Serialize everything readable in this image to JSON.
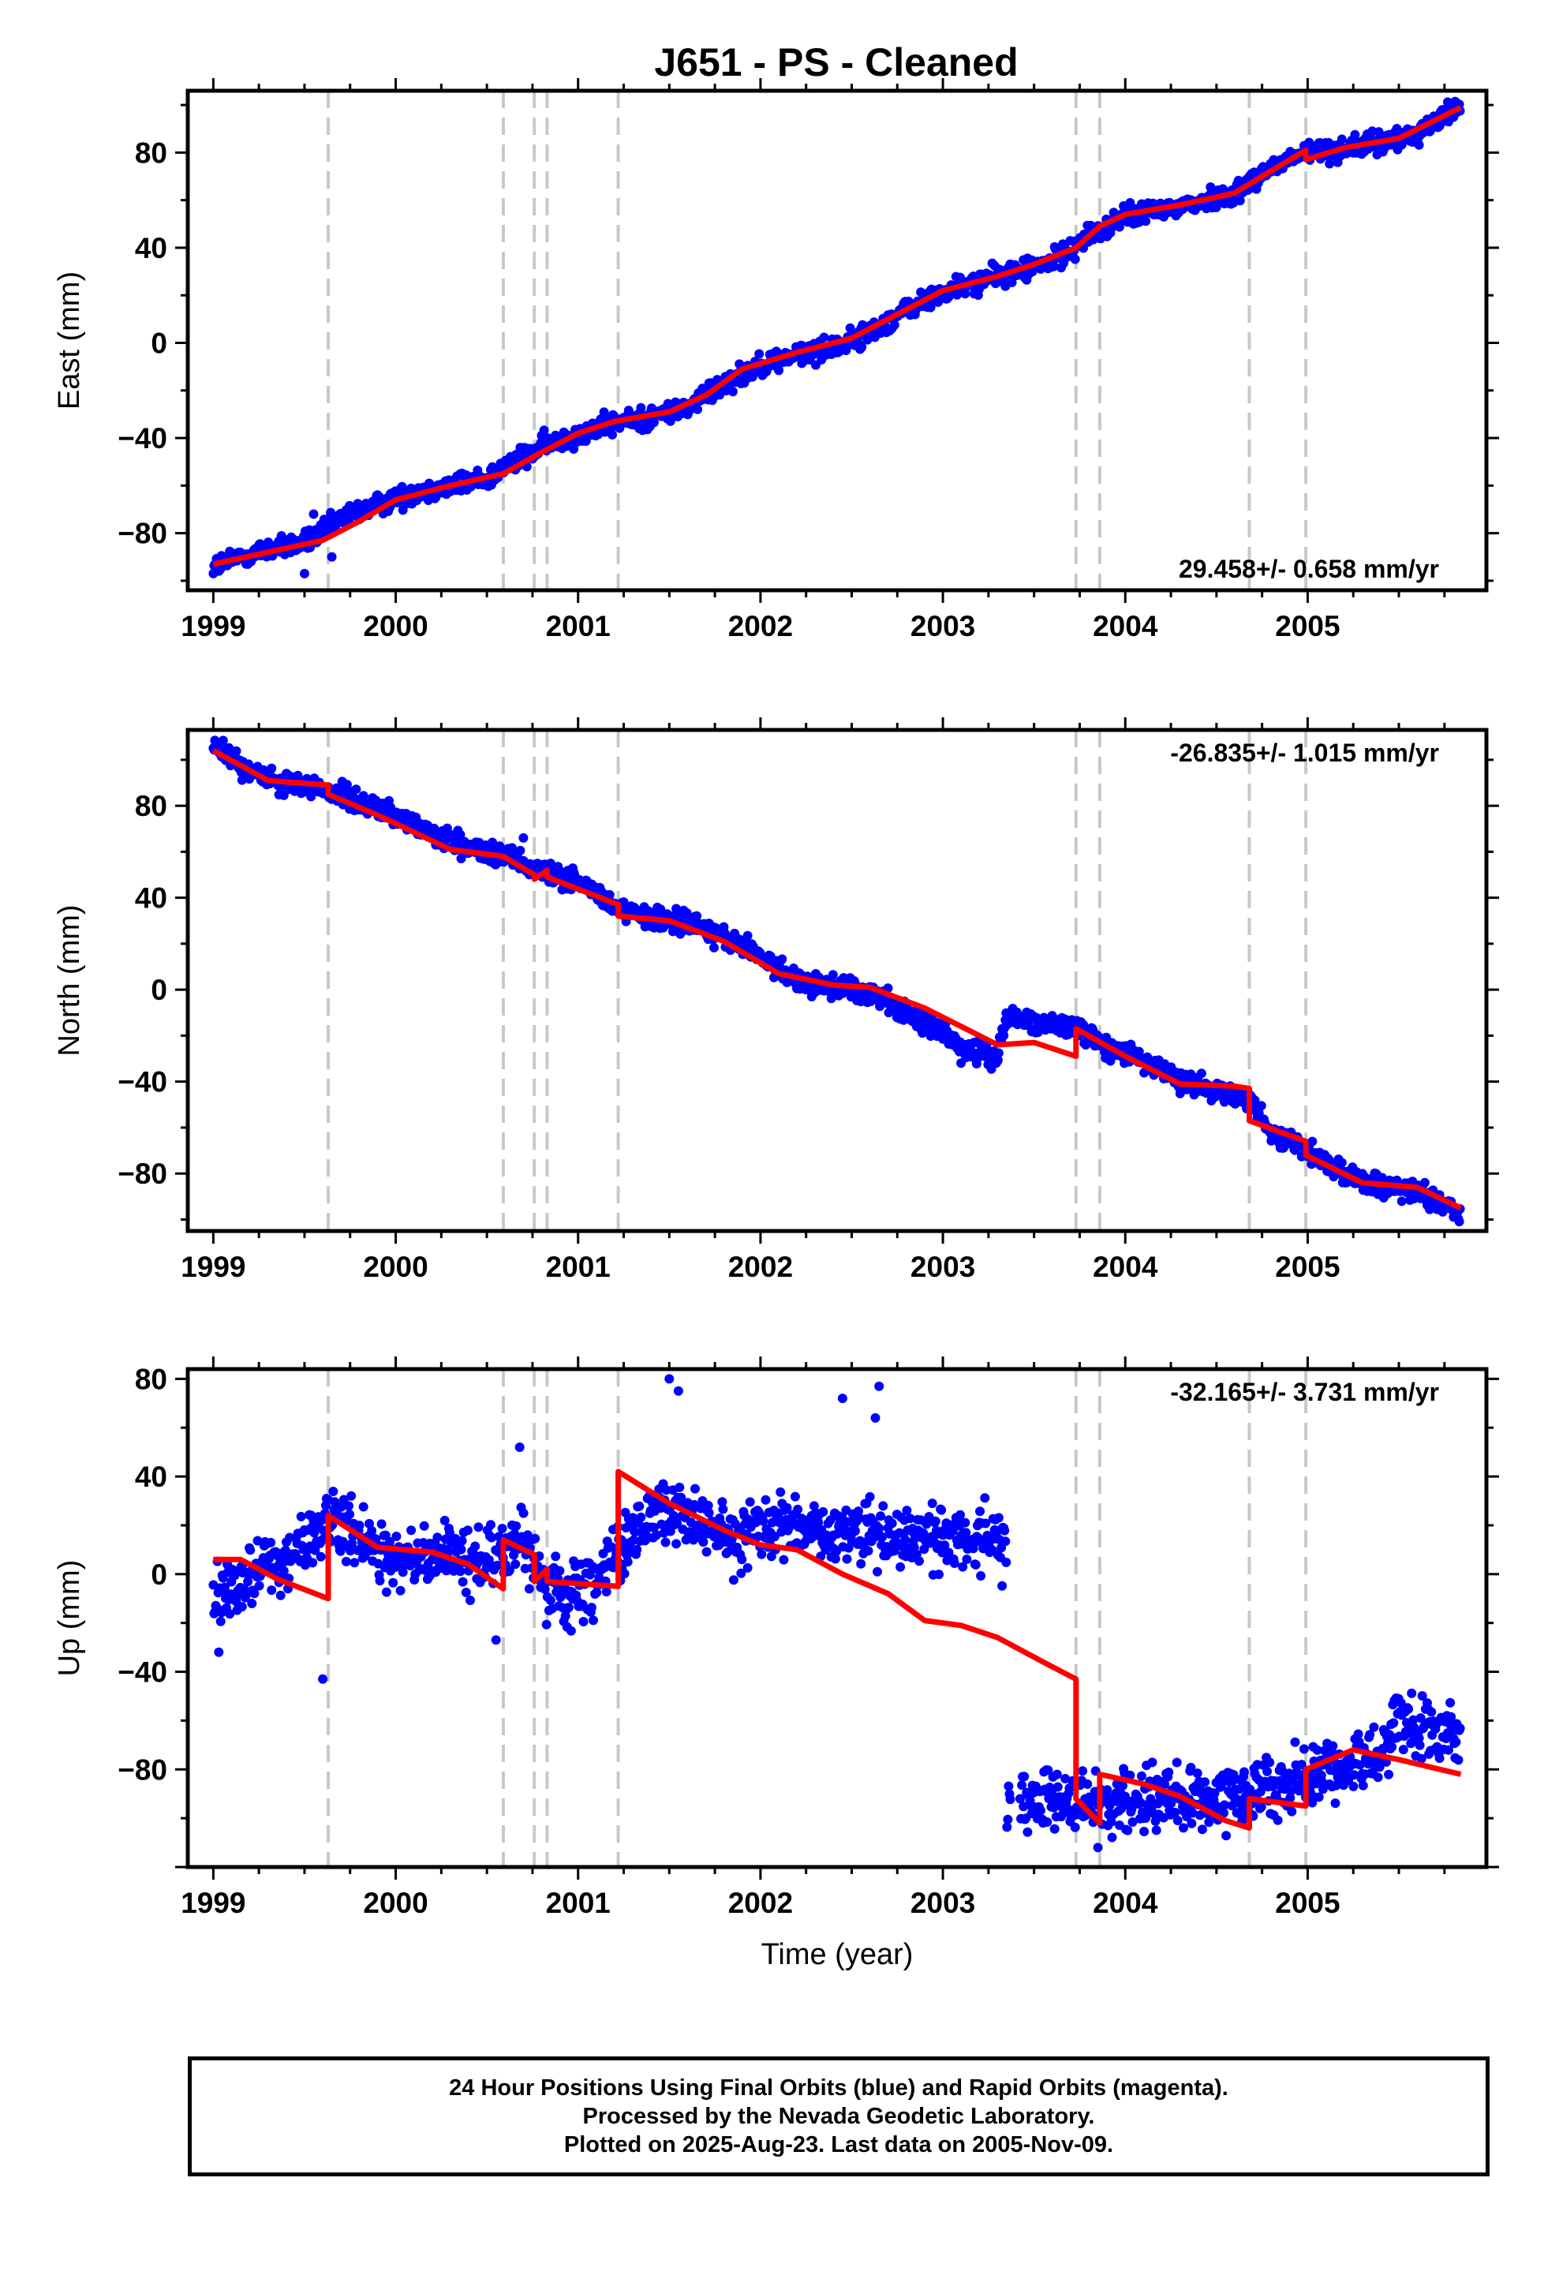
{
  "title": "J651  - PS - Cleaned",
  "colors": {
    "data": "#0000ff",
    "model": "#ff0000",
    "breaks": "#c8c8c8",
    "frame": "#000000"
  },
  "footer": {
    "line1": "24 Hour Positions Using Final Orbits (blue) and Rapid Orbits (magenta).",
    "line2": "Processed by the Nevada Geodetic Laboratory.",
    "line3": "Plotted on 2025-Aug-23. Last data on 2005-Nov-09."
  },
  "chart_data": [
    {
      "type": "scatter",
      "name": "east-panel",
      "ylabel": "East (mm)",
      "xlabel": "",
      "xlim": [
        1998.86,
        2005.98
      ],
      "ylim": [
        -104,
        106
      ],
      "yticks": [
        -80,
        -40,
        0,
        40,
        80
      ],
      "ytick_labels": [
        "−80",
        "−40",
        "0",
        "40",
        "80"
      ],
      "xticks": [
        1999,
        2000,
        2001,
        2002,
        2003,
        2004,
        2005
      ],
      "xtick_labels": [
        "1999",
        "2000",
        "2001",
        "2002",
        "2003",
        "2004",
        "2005"
      ],
      "rate_label": "29.458+/- 0.658 mm/yr",
      "rate_position": "bottom-right",
      "breaks": [
        1999.63,
        2000.59,
        2000.76,
        2000.83,
        2001.22,
        2003.73,
        2003.86,
        2004.68,
        2004.99
      ],
      "model": {
        "x": [
          1999.0,
          1999.3,
          1999.6,
          1999.8,
          2000.0,
          2000.3,
          2000.59,
          2000.8,
          2001.0,
          2001.2,
          2001.5,
          2001.7,
          2001.9,
          2002.2,
          2002.5,
          2002.7,
          2003.0,
          2003.3,
          2003.5,
          2003.73,
          2003.86,
          2004.0,
          2004.3,
          2004.6,
          2004.75,
          2004.99,
          2004.99,
          2005.2,
          2005.5,
          2005.84
        ],
        "y": [
          -93,
          -88,
          -83,
          -75,
          -66,
          -60,
          -55,
          -46,
          -38,
          -33,
          -29,
          -22,
          -11,
          -4,
          2,
          10,
          22,
          28,
          33,
          40,
          49,
          54,
          58,
          63,
          70,
          81,
          77,
          82,
          86,
          99
        ]
      },
      "data": {
        "x": [
          1999.0,
          1999.1,
          1999.3,
          1999.5,
          1999.6,
          1999.7,
          1999.9,
          2000.1,
          2000.3,
          2000.5,
          2000.6,
          2000.8,
          2001.0,
          2001.2,
          2001.4,
          2001.6,
          2001.8,
          2002.0,
          2002.2,
          2002.4,
          2002.6,
          2002.8,
          2003.0,
          2003.2,
          2003.4,
          2003.6,
          2003.8,
          2004.0,
          2004.2,
          2004.4,
          2004.6,
          2004.8,
          2005.0,
          2005.2,
          2005.4,
          2005.6,
          2005.84
        ],
        "y": [
          -94,
          -91,
          -87,
          -84,
          -80,
          -74,
          -68,
          -63,
          -60,
          -57,
          -52,
          -44,
          -38,
          -34,
          -31,
          -27,
          -17,
          -9,
          -5,
          -2,
          4,
          14,
          21,
          26,
          30,
          34,
          45,
          53,
          56,
          59,
          63,
          74,
          80,
          82,
          84,
          88,
          100
        ],
        "noise": 3.2,
        "outliers": [
          [
            1999.5,
            -97
          ],
          [
            1999.55,
            -72
          ],
          [
            1999.65,
            -90
          ]
        ]
      }
    },
    {
      "type": "scatter",
      "name": "north-panel",
      "ylabel": "North (mm)",
      "xlabel": "",
      "xlim": [
        1998.86,
        2005.98
      ],
      "ylim": [
        -105,
        113
      ],
      "yticks": [
        -80,
        -40,
        0,
        40,
        80
      ],
      "ytick_labels": [
        "−80",
        "−40",
        "0",
        "40",
        "80"
      ],
      "xticks": [
        1999,
        2000,
        2001,
        2002,
        2003,
        2004,
        2005
      ],
      "xtick_labels": [
        "1999",
        "2000",
        "2001",
        "2002",
        "2003",
        "2004",
        "2005"
      ],
      "rate_label": "-26.835+/- 1.015 mm/yr",
      "rate_position": "top-right",
      "breaks": [
        1999.63,
        2000.59,
        2000.76,
        2000.83,
        2001.22,
        2003.73,
        2003.86,
        2004.68,
        2004.99
      ],
      "model": {
        "x": [
          1999.0,
          1999.3,
          1999.63,
          1999.63,
          1999.9,
          2000.3,
          2000.59,
          2000.76,
          2000.76,
          2000.83,
          2000.83,
          2001.22,
          2001.22,
          2001.5,
          2001.8,
          2002.1,
          2002.4,
          2002.6,
          2002.9,
          2003.1,
          2003.3,
          2003.5,
          2003.73,
          2003.73,
          2004.0,
          2004.3,
          2004.6,
          2004.68,
          2004.68,
          2004.99,
          2004.99,
          2005.3,
          2005.6,
          2005.84
        ],
        "y": [
          104,
          91,
          89,
          85,
          76,
          61,
          58,
          50,
          48,
          52,
          49,
          37,
          32,
          30,
          21,
          7,
          2,
          1,
          -8,
          -16,
          -24,
          -23,
          -29,
          -17,
          -29,
          -41,
          -42,
          -43,
          -57,
          -66,
          -72,
          -84,
          -86,
          -95
        ]
      },
      "data": {
        "x": [
          1999.0,
          1999.2,
          1999.4,
          1999.6,
          1999.8,
          2000.0,
          2000.2,
          2000.4,
          2000.6,
          2000.8,
          2001.0,
          2001.2,
          2001.4,
          2001.6,
          2001.8,
          2002.0,
          2002.2,
          2002.4,
          2002.6,
          2002.8,
          2003.0,
          2003.1,
          2003.2,
          2003.3,
          2003.35,
          2003.5,
          2003.73,
          2003.9,
          2004.1,
          2004.3,
          2004.5,
          2004.68,
          2004.8,
          2005.0,
          2005.2,
          2005.4,
          2005.6,
          2005.84
        ],
        "y": [
          106,
          95,
          90,
          88,
          81,
          76,
          67,
          61,
          58,
          52,
          47,
          36,
          30,
          30,
          22,
          14,
          4,
          1,
          -1,
          -10,
          -19,
          -25,
          -27,
          -29,
          -12,
          -15,
          -17,
          -25,
          -31,
          -39,
          -44,
          -47,
          -63,
          -70,
          -80,
          -86,
          -88,
          -97
        ],
        "noise": 3.4,
        "outliers": [
          [
            2000.7,
            66
          ],
          [
            2003.3,
            -31
          ]
        ]
      }
    },
    {
      "type": "scatter",
      "name": "up-panel",
      "ylabel": "Up (mm)",
      "xlabel": "Time (year)",
      "xlim": [
        1998.86,
        2005.98
      ],
      "ylim": [
        -120,
        84
      ],
      "yticks": [
        -80,
        -40,
        0,
        40,
        80
      ],
      "ytick_labels": [
        "−80",
        "−40",
        "0",
        "40",
        "80"
      ],
      "xticks": [
        1999,
        2000,
        2001,
        2002,
        2003,
        2004,
        2005
      ],
      "xtick_labels": [
        "1999",
        "2000",
        "2001",
        "2002",
        "2003",
        "2004",
        "2005"
      ],
      "rate_label": "-32.165+/- 3.731 mm/yr",
      "rate_position": "top-right",
      "breaks": [
        1999.63,
        2000.59,
        2000.76,
        2000.83,
        2001.22,
        2003.73,
        2003.86,
        2004.68,
        2004.99
      ],
      "model": {
        "x": [
          1999.0,
          1999.15,
          1999.35,
          1999.63,
          1999.63,
          1999.9,
          2000.2,
          2000.4,
          2000.59,
          2000.59,
          2000.76,
          2000.76,
          2000.83,
          2000.83,
          2001.22,
          2001.22,
          2001.5,
          2001.8,
          2002.0,
          2002.2,
          2002.45,
          2002.7,
          2002.9,
          2003.1,
          2003.3,
          2003.55,
          2003.73,
          2003.73,
          2003.86,
          2003.86,
          2004.1,
          2004.3,
          2004.55,
          2004.68,
          2004.68,
          2004.99,
          2004.99,
          2005.25,
          2005.5,
          2005.84
        ],
        "y": [
          6,
          6,
          -2,
          -10,
          24,
          11,
          9,
          4,
          -6,
          14,
          8,
          -3,
          2,
          -3,
          -5,
          42,
          29,
          18,
          12,
          10,
          0,
          -8,
          -19,
          -21,
          -26,
          -36,
          -43,
          -92,
          -102,
          -82,
          -86,
          -91,
          -101,
          -104,
          -92,
          -95,
          -80,
          -72,
          -76,
          -82
        ]
      },
      "data": {
        "x": [
          1999.0,
          1999.2,
          1999.4,
          1999.63,
          1999.8,
          2000.0,
          2000.2,
          2000.4,
          2000.59,
          2000.7,
          2000.83,
          2001.0,
          2001.22,
          2001.4,
          2001.6,
          2001.8,
          2002.0,
          2002.2,
          2002.4,
          2002.6,
          2002.8,
          2003.0,
          2003.2,
          2003.35,
          2003.35,
          2003.5,
          2003.73,
          2003.86,
          2004.0,
          2004.2,
          2004.4,
          2004.68,
          2004.8,
          2004.99,
          2005.2,
          2005.4,
          2005.5,
          2005.7,
          2005.84
        ],
        "y": [
          -8,
          0,
          6,
          22,
          13,
          5,
          9,
          7,
          8,
          13,
          -6,
          -8,
          6,
          28,
          22,
          15,
          18,
          20,
          15,
          18,
          14,
          17,
          13,
          14,
          -88,
          -91,
          -93,
          -96,
          -94,
          -90,
          -92,
          -91,
          -88,
          -83,
          -78,
          -75,
          -62,
          -65,
          -66
        ],
        "noise": 9.0,
        "outliers": [
          [
            1999.03,
            -32
          ],
          [
            1999.6,
            -43
          ],
          [
            2000.55,
            -27
          ],
          [
            2001.5,
            80
          ],
          [
            2001.55,
            75
          ],
          [
            2002.45,
            72
          ],
          [
            2002.65,
            77
          ],
          [
            2002.63,
            64
          ],
          [
            2000.68,
            52
          ],
          [
            2003.85,
            -112
          ]
        ]
      }
    }
  ]
}
